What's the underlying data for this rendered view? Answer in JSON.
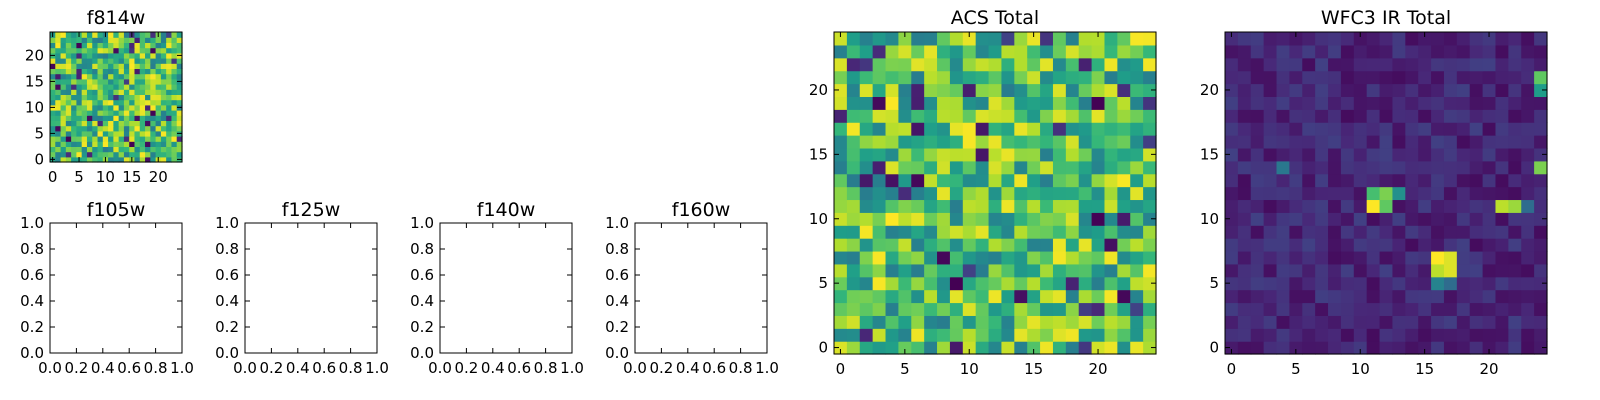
{
  "chart_data": [
    {
      "type": "heatmap",
      "title": "f814w",
      "x_ticks": [
        0,
        5,
        10,
        15,
        20
      ],
      "y_ticks": [
        0,
        5,
        10,
        15,
        20
      ],
      "xlim": [
        -0.5,
        24.5
      ],
      "ylim": [
        -0.5,
        24.5
      ],
      "grid_size": [
        25,
        25
      ],
      "colormap": "viridis",
      "field_kind": "noise",
      "seed": 11
    },
    {
      "type": "heatmap",
      "title": "f105w",
      "empty": true,
      "x_ticks": [
        "0.0",
        "0.2",
        "0.4",
        "0.6",
        "0.8",
        "1.0"
      ],
      "y_ticks": [
        "0.0",
        "0.2",
        "0.4",
        "0.6",
        "0.8",
        "1.0"
      ],
      "xlim": [
        0,
        1
      ],
      "ylim": [
        0,
        1
      ]
    },
    {
      "type": "heatmap",
      "title": "f125w",
      "empty": true,
      "x_ticks": [
        "0.0",
        "0.2",
        "0.4",
        "0.6",
        "0.8",
        "1.0"
      ],
      "y_ticks": [
        "0.0",
        "0.2",
        "0.4",
        "0.6",
        "0.8",
        "1.0"
      ],
      "xlim": [
        0,
        1
      ],
      "ylim": [
        0,
        1
      ]
    },
    {
      "type": "heatmap",
      "title": "f140w",
      "empty": true,
      "x_ticks": [
        "0.0",
        "0.2",
        "0.4",
        "0.6",
        "0.8",
        "1.0"
      ],
      "y_ticks": [
        "0.0",
        "0.2",
        "0.4",
        "0.6",
        "0.8",
        "1.0"
      ],
      "xlim": [
        0,
        1
      ],
      "ylim": [
        0,
        1
      ]
    },
    {
      "type": "heatmap",
      "title": "f160w",
      "empty": true,
      "x_ticks": [
        "0.0",
        "0.2",
        "0.4",
        "0.6",
        "0.8",
        "1.0"
      ],
      "y_ticks": [
        "0.0",
        "0.2",
        "0.4",
        "0.6",
        "0.8",
        "1.0"
      ],
      "xlim": [
        0,
        1
      ],
      "ylim": [
        0,
        1
      ]
    },
    {
      "type": "heatmap",
      "title": "ACS Total",
      "x_ticks": [
        0,
        5,
        10,
        15,
        20
      ],
      "y_ticks": [
        0,
        5,
        10,
        15,
        20
      ],
      "xlim": [
        -0.5,
        24.5
      ],
      "ylim": [
        -0.5,
        24.5
      ],
      "grid_size": [
        25,
        25
      ],
      "colormap": "viridis",
      "field_kind": "noise",
      "seed": 29
    },
    {
      "type": "heatmap",
      "title": "WFC3 IR Total",
      "x_ticks": [
        0,
        5,
        10,
        15,
        20
      ],
      "y_ticks": [
        0,
        5,
        10,
        15,
        20
      ],
      "xlim": [
        -0.5,
        24.5
      ],
      "ylim": [
        -0.5,
        24.5
      ],
      "grid_size": [
        25,
        25
      ],
      "colormap": "viridis",
      "field_kind": "sources",
      "seed": 53,
      "bright_sources": [
        {
          "x": 11,
          "y": 11,
          "value": 1.0
        },
        {
          "x": 12,
          "y": 12,
          "value": 0.8
        },
        {
          "x": 11,
          "y": 12,
          "value": 0.7
        },
        {
          "x": 12,
          "y": 11,
          "value": 0.75
        },
        {
          "x": 13,
          "y": 12,
          "value": 0.5
        },
        {
          "x": 16,
          "y": 6,
          "value": 0.9
        },
        {
          "x": 17,
          "y": 6,
          "value": 0.95
        },
        {
          "x": 16,
          "y": 7,
          "value": 1.0
        },
        {
          "x": 17,
          "y": 7,
          "value": 0.95
        },
        {
          "x": 16,
          "y": 5,
          "value": 0.45
        },
        {
          "x": 17,
          "y": 5,
          "value": 0.35
        },
        {
          "x": 21,
          "y": 11,
          "value": 0.9
        },
        {
          "x": 22,
          "y": 11,
          "value": 0.85
        },
        {
          "x": 23,
          "y": 11,
          "value": 0.35
        },
        {
          "x": 24,
          "y": 21,
          "value": 0.75
        },
        {
          "x": 24,
          "y": 20,
          "value": 0.55
        },
        {
          "x": 4,
          "y": 14,
          "value": 0.4
        },
        {
          "x": 24,
          "y": 14,
          "value": 0.8
        }
      ]
    }
  ]
}
